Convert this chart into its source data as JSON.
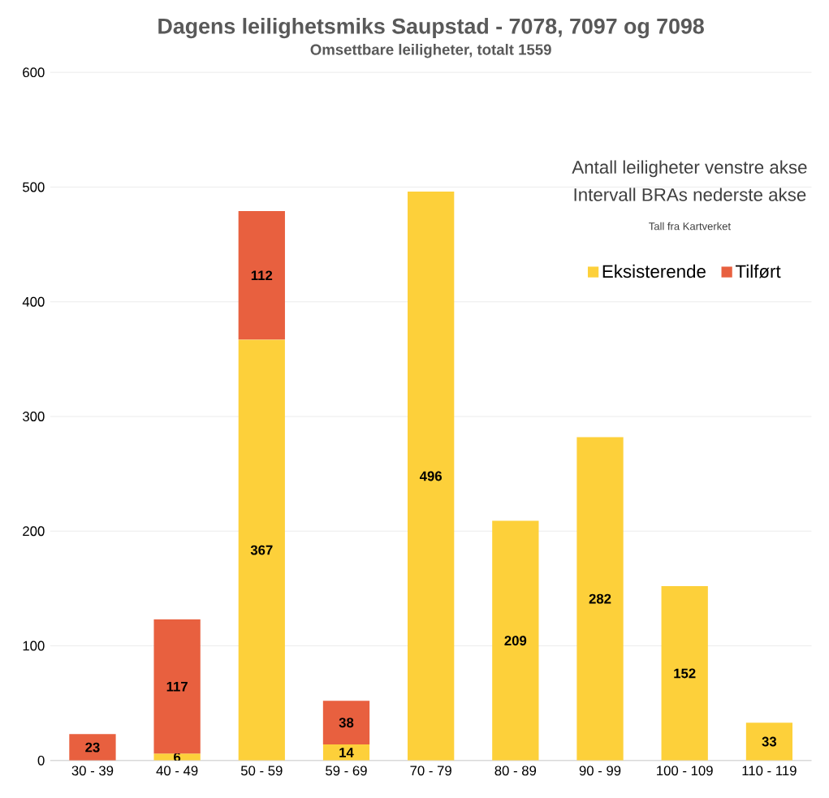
{
  "chart_data": {
    "type": "bar",
    "title": "Dagens leilighetsmiks Saupstad - 7078, 7097 og 7098",
    "subtitle": "Omsettbare leiligheter, totalt 1559",
    "annotations": [
      "Antall leiligheter venstre akse",
      "Intervall BRAs nederste akse",
      "Tall fra Kartverket"
    ],
    "categories": [
      "30 - 39",
      "40 - 49",
      "50 - 59",
      "59 - 69",
      "70 - 79",
      "80 - 89",
      "90 - 99",
      "100 - 109",
      "110 - 119"
    ],
    "stacked": true,
    "series": [
      {
        "name": "Eksisterende",
        "color": "#fdd03a",
        "values": [
          null,
          6,
          367,
          14,
          496,
          209,
          282,
          152,
          33
        ],
        "value_labels": [
          null,
          "6",
          "367",
          "14",
          "496",
          "209",
          "282",
          "152",
          "33"
        ]
      },
      {
        "name": "Tilført",
        "color": "#e8603f",
        "values": [
          23,
          117,
          112,
          38,
          null,
          null,
          null,
          null,
          null
        ],
        "value_labels": [
          "23",
          "117",
          "112",
          "38",
          null,
          null,
          null,
          null,
          null
        ]
      }
    ],
    "ylim": [
      0,
      600
    ],
    "yticks": [
      0,
      100,
      200,
      300,
      400,
      500,
      600
    ],
    "grid": "y",
    "legend": "top right"
  }
}
